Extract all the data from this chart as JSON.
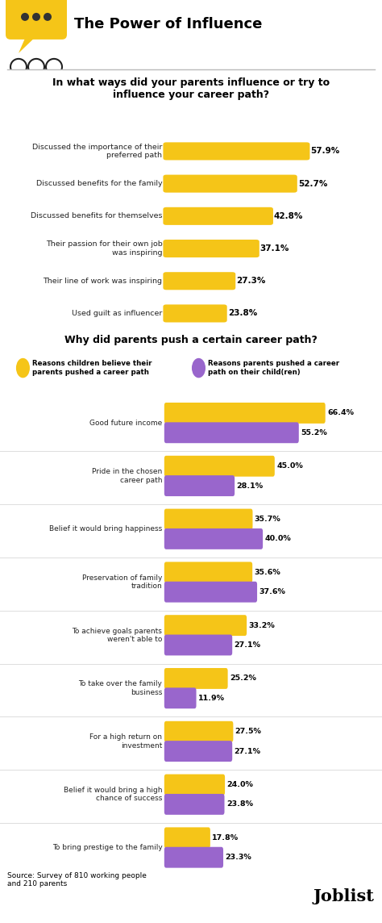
{
  "title": "The Power of Influence",
  "section1_title": "In what ways did your parents influence or try to\ninfluence your career path?",
  "section1_labels": [
    "Discussed the importance of their\npreferred path",
    "Discussed benefits for the family",
    "Discussed benefits for themselves",
    "Their passion for their own job\nwas inspiring",
    "Their line of work was inspiring",
    "Used guilt as influencer"
  ],
  "section1_values": [
    57.9,
    52.7,
    42.8,
    37.1,
    27.3,
    23.8
  ],
  "section1_color": "#F5C518",
  "section2_title": "Why did parents push a certain career path?",
  "legend_yellow": "Reasons children believe their\nparents pushed a career path",
  "legend_purple": "Reasons parents pushed a career\npath on their child(ren)",
  "section2_labels": [
    "Good future income",
    "Pride in the chosen\ncareer path",
    "Belief it would bring happiness",
    "Preservation of family\ntradition",
    "To achieve goals parents\nweren't able to",
    "To take over the family\nbusiness",
    "For a high return on\ninvestment",
    "Belief it would bring a high\nchance of success",
    "To bring prestige to the family"
  ],
  "section2_values_yellow": [
    66.4,
    45.0,
    35.7,
    35.6,
    33.2,
    25.2,
    27.5,
    24.0,
    17.8
  ],
  "section2_values_purple": [
    55.2,
    28.1,
    40.0,
    37.6,
    27.1,
    11.9,
    27.1,
    23.8,
    23.3
  ],
  "yellow_color": "#F5C518",
  "purple_color": "#9966CC",
  "source_text": "Source: Survey of 810 working people\nand 210 parents",
  "bg_color": "#FFFFFF"
}
